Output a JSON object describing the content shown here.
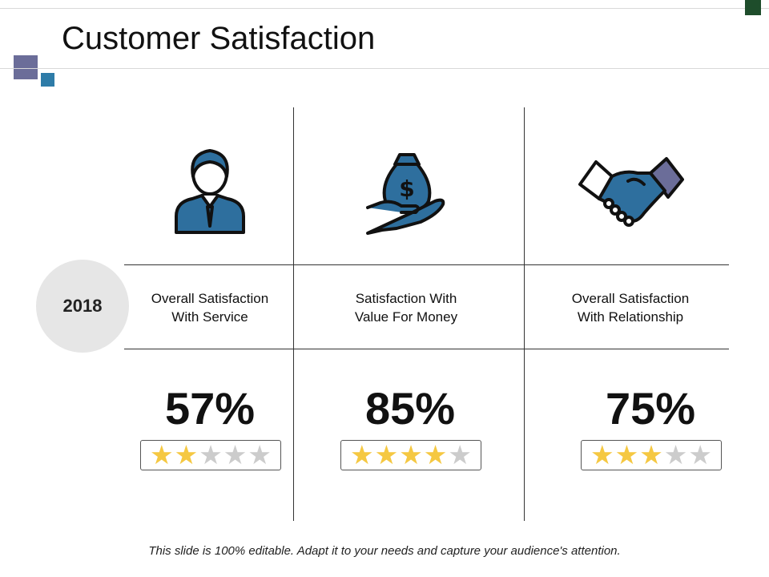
{
  "title": "Customer Satisfaction",
  "year": "2018",
  "metrics": [
    {
      "label_line1": "Overall Satisfaction",
      "label_line2": "With Service",
      "percent": "57%",
      "stars": 2,
      "icon": "customer-service-person-icon"
    },
    {
      "label_line1": "Satisfaction With",
      "label_line2": "Value For Money",
      "percent": "85%",
      "stars": 4,
      "icon": "money-bag-hand-icon"
    },
    {
      "label_line1": "Overall Satisfaction",
      "label_line2": "With Relationship",
      "percent": "75%",
      "stars": 3,
      "icon": "handshake-icon"
    }
  ],
  "footer": "This slide is 100% editable. Adapt it to your needs and capture your audience's attention.",
  "colors": {
    "accent_blue": "#2e6f9e",
    "accent_purple": "#6b6d99",
    "star_on": "#f5c842",
    "star_off": "#cccccc",
    "year_circle": "#e6e6e6",
    "corner": "#1e4d2b"
  }
}
